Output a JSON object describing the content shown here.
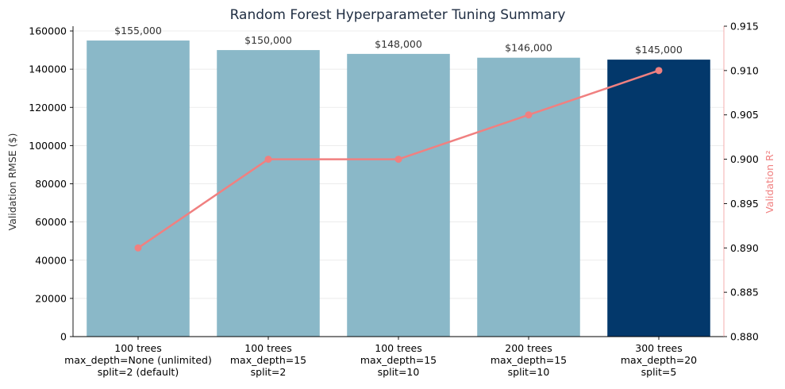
{
  "chart_data": {
    "type": "bar",
    "title": "Random Forest Hyperparameter Tuning Summary",
    "categories": [
      [
        "100 trees",
        "max_depth=None (unlimited)",
        "split=2 (default)"
      ],
      [
        "100 trees",
        "max_depth=15",
        "split=2"
      ],
      [
        "100 trees",
        "max_depth=15",
        "split=10"
      ],
      [
        "200 trees",
        "max_depth=15",
        "split=10"
      ],
      [
        "300 trees",
        "max_depth=20",
        "split=5"
      ]
    ],
    "bar_series": {
      "values": [
        155000,
        150000,
        148000,
        146000,
        145000
      ],
      "data_labels": [
        "$155,000",
        "$150,000",
        "$148,000",
        "$146,000",
        "$145,000"
      ],
      "color": "#8ab8c8",
      "highlight_color": "#03386b",
      "highlight_index": 4
    },
    "line_series": {
      "values": [
        0.89,
        0.9,
        0.9,
        0.905,
        0.91
      ],
      "color": "#f08080",
      "axis": "right"
    },
    "ylabel": "Validation RMSE ($)",
    "ylim": [
      0,
      162500
    ],
    "yticks": [
      0,
      20000,
      40000,
      60000,
      80000,
      100000,
      120000,
      140000,
      160000
    ],
    "ytick_labels": [
      "0",
      "20000",
      "40000",
      "60000",
      "80000",
      "100000",
      "120000",
      "140000",
      "160000"
    ],
    "y2label": "Validation R²",
    "y2lim": [
      0.88,
      0.915
    ],
    "y2ticks": [
      0.88,
      0.885,
      0.89,
      0.895,
      0.9,
      0.905,
      0.91,
      0.915
    ],
    "y2tick_labels": [
      "0.880",
      "0.885",
      "0.890",
      "0.895",
      "0.900",
      "0.905",
      "0.910",
      "0.915"
    ],
    "grid": true,
    "legend": "none"
  }
}
